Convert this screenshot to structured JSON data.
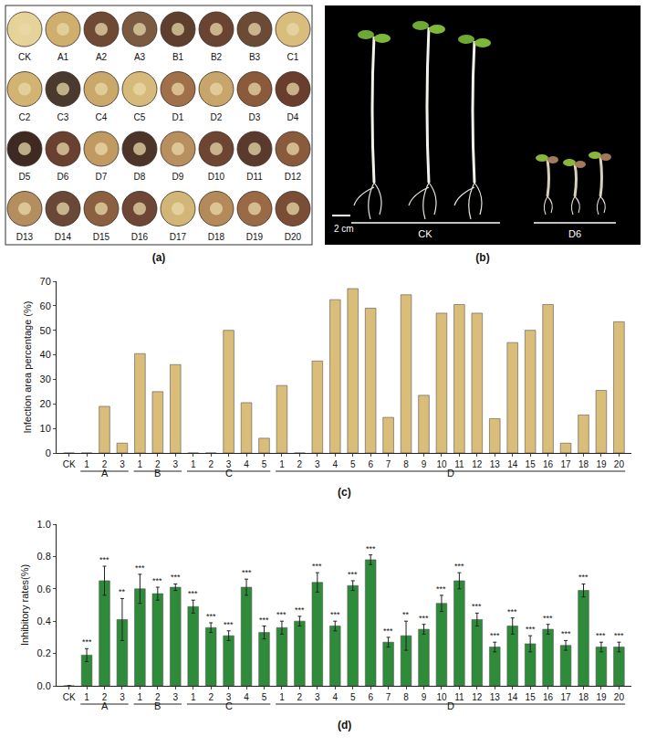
{
  "panel_a": {
    "letter": "(a)",
    "samples": [
      "CK",
      "A1",
      "A2",
      "A3",
      "B1",
      "B2",
      "B3",
      "C1",
      "C2",
      "C3",
      "C4",
      "C5",
      "D1",
      "D2",
      "D3",
      "D4",
      "D5",
      "D6",
      "D7",
      "D8",
      "D9",
      "D10",
      "D11",
      "D12",
      "D13",
      "D14",
      "D15",
      "D16",
      "D17",
      "D18",
      "D19",
      "D20"
    ],
    "colors": [
      "#e6d39a",
      "#cfae6e",
      "#6e4a35",
      "#7a5a40",
      "#5e3f2e",
      "#6a4432",
      "#6b4a36",
      "#d8bd7c",
      "#d2b472",
      "#4a3a2e",
      "#c9a86a",
      "#d6ba7a",
      "#a0704a",
      "#c8a56a",
      "#8a5a3a",
      "#6a3e2c",
      "#3e2a22",
      "#6a4030",
      "#c19a62",
      "#4c3428",
      "#b89060",
      "#6e4432",
      "#5a3a2c",
      "#8a5a3c",
      "#b48e5e",
      "#6a4838",
      "#8a6040",
      "#6e4636",
      "#d2b678",
      "#b58a5a",
      "#9a6a46",
      "#7a4e36"
    ]
  },
  "panel_b": {
    "letter": "(b)",
    "scale_label": "2 cm",
    "groups": [
      "CK",
      "D6"
    ]
  },
  "chart_data": [
    {
      "type": "bar",
      "letter": "(c)",
      "y_label": "Infection area percentage (%)",
      "categories": [
        "CK",
        "1",
        "2",
        "3",
        "1",
        "2",
        "3",
        "1",
        "2",
        "3",
        "4",
        "5",
        "1",
        "2",
        "3",
        "4",
        "5",
        "6",
        "7",
        "8",
        "9",
        "10",
        "11",
        "12",
        "13",
        "14",
        "15",
        "16",
        "17",
        "18",
        "19",
        "20"
      ],
      "values": [
        0,
        0,
        19,
        4,
        40.5,
        25,
        36,
        0,
        0,
        50,
        20.5,
        6,
        27.5,
        0,
        37.5,
        62.5,
        67,
        59,
        14.5,
        64.5,
        23.5,
        57,
        60.5,
        57,
        14,
        45,
        50,
        60.5,
        4,
        15.5,
        25.5,
        53.5
      ],
      "groups": [
        {
          "label": "A",
          "start": 1,
          "end": 3
        },
        {
          "label": "B",
          "start": 4,
          "end": 6
        },
        {
          "label": "C",
          "start": 7,
          "end": 11
        },
        {
          "label": "D",
          "start": 12,
          "end": 31
        }
      ],
      "color": "#d9bd78",
      "ylim": [
        0,
        70
      ],
      "yticks": [
        0,
        10,
        20,
        30,
        40,
        50,
        60,
        70
      ],
      "grid": false
    },
    {
      "type": "bar",
      "letter": "(d)",
      "y_label": "Inhibitory rates(%)",
      "categories": [
        "CK",
        "1",
        "2",
        "3",
        "1",
        "2",
        "3",
        "1",
        "2",
        "3",
        "4",
        "5",
        "1",
        "2",
        "3",
        "4",
        "5",
        "6",
        "7",
        "8",
        "9",
        "10",
        "11",
        "12",
        "13",
        "14",
        "15",
        "16",
        "17",
        "18",
        "19",
        "20"
      ],
      "values": [
        0,
        0.19,
        0.65,
        0.41,
        0.6,
        0.57,
        0.61,
        0.49,
        0.36,
        0.31,
        0.61,
        0.33,
        0.36,
        0.4,
        0.64,
        0.37,
        0.62,
        0.78,
        0.27,
        0.31,
        0.35,
        0.51,
        0.65,
        0.41,
        0.24,
        0.37,
        0.26,
        0.35,
        0.25,
        0.59,
        0.24,
        0.24
      ],
      "errors": [
        0,
        0.04,
        0.09,
        0.13,
        0.09,
        0.04,
        0.02,
        0.04,
        0.03,
        0.03,
        0.05,
        0.04,
        0.04,
        0.03,
        0.06,
        0.03,
        0.03,
        0.03,
        0.03,
        0.09,
        0.03,
        0.05,
        0.05,
        0.04,
        0.03,
        0.05,
        0.05,
        0.03,
        0.03,
        0.04,
        0.03,
        0.03
      ],
      "significance": [
        null,
        "***",
        "***",
        "**",
        "***",
        "***",
        "***",
        "***",
        "***",
        "***",
        "***",
        "***",
        "***",
        "***",
        "***",
        "***",
        "***",
        "***",
        "***",
        "**",
        "***",
        "***",
        "***",
        "***",
        "***",
        "***",
        "***",
        "***",
        "***",
        "***",
        "***",
        "***"
      ],
      "groups": [
        {
          "label": "A",
          "start": 1,
          "end": 3
        },
        {
          "label": "B",
          "start": 4,
          "end": 6
        },
        {
          "label": "C",
          "start": 7,
          "end": 11
        },
        {
          "label": "D",
          "start": 12,
          "end": 31
        }
      ],
      "color": "#2e8b3a",
      "ylim": [
        0,
        1.0
      ],
      "yticks": [
        {
          "value": 0,
          "label": "0.0"
        },
        {
          "value": 0.2,
          "label": "0.2"
        },
        {
          "value": 0.4,
          "label": "0.4"
        },
        {
          "value": 0.6,
          "label": "0.6"
        },
        {
          "value": 0.8,
          "label": "0.8"
        },
        {
          "value": 1.0,
          "label": "1.0"
        }
      ],
      "grid": false
    }
  ]
}
